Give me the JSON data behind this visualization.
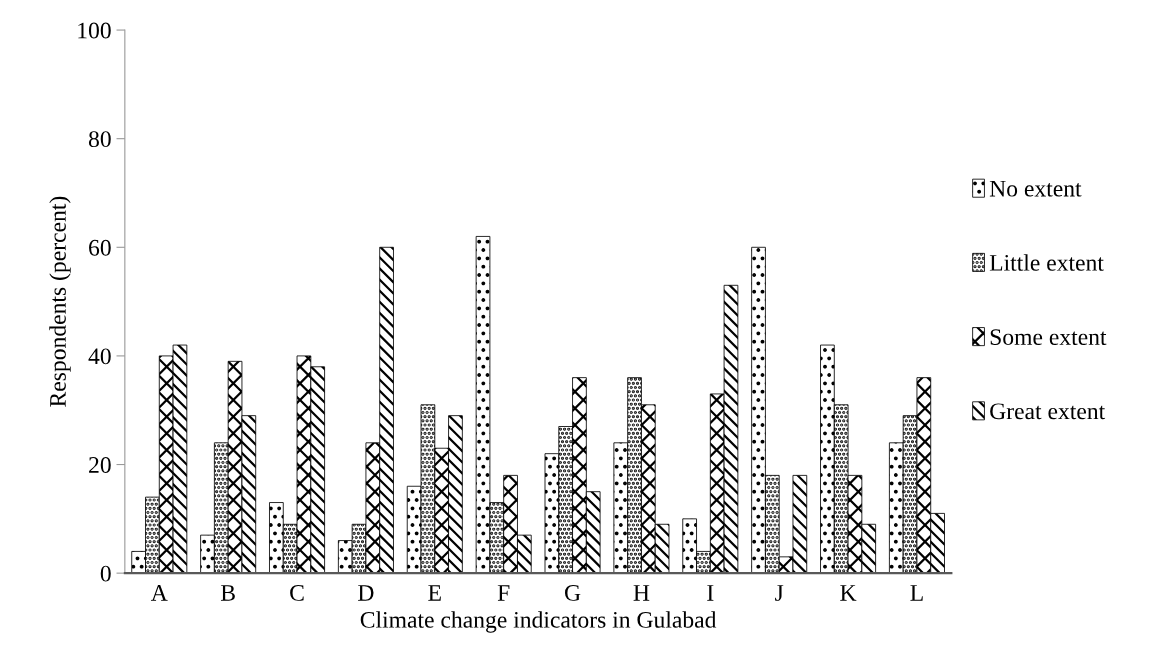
{
  "chart_data": {
    "type": "bar",
    "xlabel": "Climate change indicators in Gulabad",
    "ylabel": "Respondents (percent)",
    "categories": [
      "A",
      "B",
      "C",
      "D",
      "E",
      "F",
      "G",
      "H",
      "I",
      "J",
      "K",
      "L"
    ],
    "series": [
      {
        "name": "No extent",
        "color": "#000000",
        "values": [
          4,
          7,
          13,
          6,
          16,
          62,
          22,
          24,
          10,
          60,
          42,
          24
        ]
      },
      {
        "name": "Little extent",
        "color": "#000000",
        "values": [
          14,
          24,
          9,
          9,
          31,
          13,
          27,
          36,
          4,
          18,
          31,
          29
        ]
      },
      {
        "name": "Some extent",
        "color": "#000000",
        "values": [
          40,
          39,
          40,
          24,
          23,
          18,
          36,
          31,
          33,
          3,
          18,
          36
        ]
      },
      {
        "name": "Great extent",
        "color": "#000000",
        "values": [
          42,
          29,
          38,
          60,
          29,
          7,
          15,
          9,
          53,
          18,
          9,
          11
        ]
      }
    ],
    "ylim": [
      0,
      100
    ],
    "yticks": [
      0,
      20,
      40,
      60,
      80,
      100
    ],
    "grid": false,
    "legend": "right"
  }
}
